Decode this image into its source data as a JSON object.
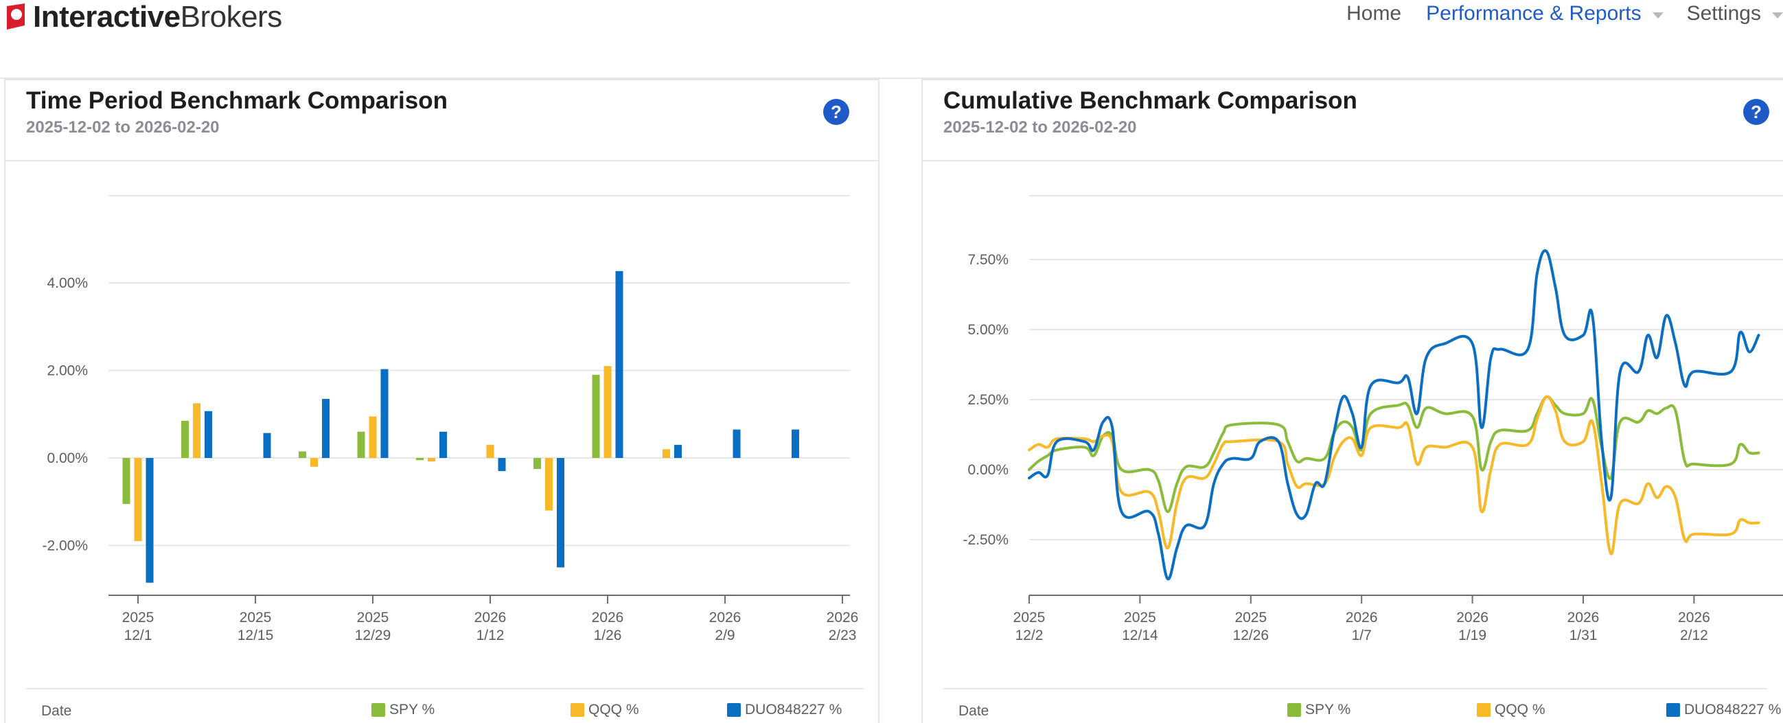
{
  "header": {
    "logo_bold": "Interactive",
    "logo_light": "Brokers",
    "nav": [
      {
        "label": "Home"
      },
      {
        "label": "Performance & Reports"
      },
      {
        "label": "Settings"
      }
    ]
  },
  "colors": {
    "spy": "#8bbb3b",
    "qqq": "#f7b928",
    "duo": "#0a6fc2",
    "accent": "#1f5bc6"
  },
  "icons": {
    "help": "help-icon",
    "dropdown": "chevron-down-icon"
  },
  "left_panel": {
    "title": "Time Period Benchmark Comparison",
    "subtitle": "2025-12-02 to 2026-02-20",
    "help_glyph": "?",
    "legend": {
      "date_label": "Date",
      "spy": "SPY %",
      "qqq": "QQQ %",
      "duo": "DUO848227 %"
    }
  },
  "right_panel": {
    "title": "Cumulative Benchmark Comparison",
    "subtitle": "2025-12-02 to 2026-02-20",
    "help_glyph": "?",
    "legend": {
      "date_label": "Date",
      "spy": "SPY %",
      "qqq": "QQQ %",
      "duo": "DUO848227 %"
    }
  },
  "chart_data": [
    {
      "type": "bar",
      "x_ticks": [
        {
          "year": "2025",
          "date": "12/1"
        },
        {
          "year": "2025",
          "date": "12/15"
        },
        {
          "year": "2025",
          "date": "12/29"
        },
        {
          "year": "2026",
          "date": "1/12"
        },
        {
          "year": "2026",
          "date": "1/26"
        },
        {
          "year": "2026",
          "date": "2/9"
        },
        {
          "year": "2026",
          "date": "2/23"
        }
      ],
      "y_ticks": [
        "4.00%",
        "2.00%",
        "0.00%",
        "-2.00%"
      ],
      "y_tick_values": [
        4,
        2,
        0,
        -2
      ],
      "ylim": [
        -3.2,
        6.0
      ],
      "grid": true,
      "series": [
        {
          "name": "SPY %",
          "values": [
            -1.05,
            0.85,
            0.0,
            0.15,
            0.6,
            -0.05,
            0.0,
            -0.25,
            1.9,
            0.0,
            0.0,
            0.0
          ]
        },
        {
          "name": "QQQ %",
          "values": [
            -1.9,
            1.25,
            0.0,
            -0.2,
            0.95,
            -0.08,
            0.3,
            -1.2,
            2.1,
            0.2,
            0.0,
            0.0
          ]
        },
        {
          "name": "DUO848227 %",
          "values": [
            -2.85,
            1.07,
            0.57,
            1.35,
            2.03,
            0.6,
            -0.3,
            -2.5,
            4.27,
            0.3,
            0.65,
            0.65
          ]
        }
      ],
      "categories": [
        "12/1",
        "12/8",
        "12/15",
        "12/22",
        "12/29",
        "1/5",
        "1/12",
        "1/19",
        "1/26",
        "2/2",
        "2/9",
        "2/16"
      ]
    },
    {
      "type": "line",
      "x_ticks": [
        {
          "year": "2025",
          "date": "12/2"
        },
        {
          "year": "2025",
          "date": "12/14"
        },
        {
          "year": "2025",
          "date": "12/26"
        },
        {
          "year": "2026",
          "date": "1/7"
        },
        {
          "year": "2026",
          "date": "1/19"
        },
        {
          "year": "2026",
          "date": "1/31"
        },
        {
          "year": "2026",
          "date": "2/12"
        }
      ],
      "y_ticks": [
        "7.50%",
        "5.00%",
        "2.50%",
        "0.00%",
        "-2.50%"
      ],
      "y_tick_values": [
        7.5,
        5,
        2.5,
        0,
        -2.5
      ],
      "ylim": [
        -4.5,
        9.5
      ],
      "grid": true,
      "x_day_range": [
        0,
        81
      ],
      "series": [
        {
          "name": "SPY %",
          "points": [
            [
              0,
              0.0
            ],
            [
              1,
              0.3
            ],
            [
              2,
              0.5
            ],
            [
              3,
              0.7
            ],
            [
              6,
              0.8
            ],
            [
              7,
              0.5
            ],
            [
              8,
              1.2
            ],
            [
              9,
              1.2
            ],
            [
              10,
              0.0
            ],
            [
              13,
              0.0
            ],
            [
              14,
              -0.4
            ],
            [
              15,
              -1.5
            ],
            [
              16,
              -0.5
            ],
            [
              17,
              0.1
            ],
            [
              19,
              0.1
            ],
            [
              20,
              0.6
            ],
            [
              21,
              1.3
            ],
            [
              22,
              1.6
            ],
            [
              27,
              1.6
            ],
            [
              28,
              1.0
            ],
            [
              29,
              0.3
            ],
            [
              30,
              0.4
            ],
            [
              32,
              0.4
            ],
            [
              33,
              1.3
            ],
            [
              34,
              1.7
            ],
            [
              35,
              1.5
            ],
            [
              36,
              0.7
            ],
            [
              37,
              2.0
            ],
            [
              40,
              2.3
            ],
            [
              41,
              2.3
            ],
            [
              42,
              1.5
            ],
            [
              43,
              2.2
            ],
            [
              45,
              2.0
            ],
            [
              48,
              1.9
            ],
            [
              49,
              0.0
            ],
            [
              50,
              1.0
            ],
            [
              51,
              1.4
            ],
            [
              54,
              1.4
            ],
            [
              55,
              2.0
            ],
            [
              56,
              2.6
            ],
            [
              57,
              2.3
            ],
            [
              58,
              2.0
            ],
            [
              60,
              2.0
            ],
            [
              61,
              2.5
            ],
            [
              62,
              0.8
            ],
            [
              63,
              -0.3
            ],
            [
              64,
              1.7
            ],
            [
              66,
              1.7
            ],
            [
              67,
              2.1
            ],
            [
              68,
              2.0
            ],
            [
              69,
              2.2
            ],
            [
              70,
              2.1
            ],
            [
              71,
              0.3
            ],
            [
              72,
              0.2
            ],
            [
              76,
              0.2
            ],
            [
              77,
              0.9
            ],
            [
              78,
              0.6
            ],
            [
              79,
              0.6
            ]
          ]
        },
        {
          "name": "QQQ %",
          "points": [
            [
              0,
              0.7
            ],
            [
              1,
              0.9
            ],
            [
              2,
              0.8
            ],
            [
              3,
              1.1
            ],
            [
              6,
              1.1
            ],
            [
              7,
              1.0
            ],
            [
              8,
              1.2
            ],
            [
              9,
              1.0
            ],
            [
              10,
              -0.8
            ],
            [
              13,
              -0.8
            ],
            [
              14,
              -1.5
            ],
            [
              15,
              -2.8
            ],
            [
              16,
              -1.2
            ],
            [
              17,
              -0.3
            ],
            [
              19,
              -0.3
            ],
            [
              20,
              0.2
            ],
            [
              21,
              0.9
            ],
            [
              22,
              1.0
            ],
            [
              27,
              1.0
            ],
            [
              28,
              0.2
            ],
            [
              29,
              -0.6
            ],
            [
              30,
              -0.5
            ],
            [
              32,
              -0.5
            ],
            [
              33,
              0.4
            ],
            [
              34,
              1.0
            ],
            [
              35,
              1.1
            ],
            [
              36,
              0.5
            ],
            [
              37,
              1.5
            ],
            [
              40,
              1.5
            ],
            [
              41,
              1.6
            ],
            [
              42,
              0.2
            ],
            [
              43,
              0.8
            ],
            [
              45,
              0.8
            ],
            [
              48,
              0.8
            ],
            [
              49,
              -1.5
            ],
            [
              50,
              0.0
            ],
            [
              51,
              0.9
            ],
            [
              54,
              0.9
            ],
            [
              55,
              1.8
            ],
            [
              56,
              2.6
            ],
            [
              57,
              2.1
            ],
            [
              58,
              1.0
            ],
            [
              60,
              1.0
            ],
            [
              61,
              1.7
            ],
            [
              62,
              -0.5
            ],
            [
              63,
              -3.0
            ],
            [
              64,
              -1.2
            ],
            [
              66,
              -1.2
            ],
            [
              67,
              -0.5
            ],
            [
              68,
              -1.0
            ],
            [
              69,
              -0.6
            ],
            [
              70,
              -1.0
            ],
            [
              71,
              -2.5
            ],
            [
              72,
              -2.3
            ],
            [
              76,
              -2.3
            ],
            [
              77,
              -1.8
            ],
            [
              78,
              -1.9
            ],
            [
              79,
              -1.9
            ]
          ]
        },
        {
          "name": "DUO848227 %",
          "points": [
            [
              0,
              -0.3
            ],
            [
              1,
              -0.1
            ],
            [
              2,
              -0.2
            ],
            [
              3,
              1.0
            ],
            [
              6,
              1.0
            ],
            [
              7,
              0.7
            ],
            [
              8,
              1.7
            ],
            [
              9,
              1.5
            ],
            [
              10,
              -1.5
            ],
            [
              13,
              -1.5
            ],
            [
              14,
              -2.3
            ],
            [
              15,
              -3.9
            ],
            [
              16,
              -2.8
            ],
            [
              17,
              -2.0
            ],
            [
              19,
              -2.0
            ],
            [
              20,
              -0.5
            ],
            [
              21,
              0.2
            ],
            [
              22,
              0.4
            ],
            [
              24,
              0.4
            ],
            [
              25,
              1.0
            ],
            [
              27,
              1.0
            ],
            [
              28,
              -0.5
            ],
            [
              29,
              -1.6
            ],
            [
              30,
              -1.6
            ],
            [
              31,
              -0.5
            ],
            [
              32,
              -0.5
            ],
            [
              33,
              1.3
            ],
            [
              34,
              2.6
            ],
            [
              35,
              2.0
            ],
            [
              36,
              0.8
            ],
            [
              37,
              3.0
            ],
            [
              40,
              3.1
            ],
            [
              41,
              3.3
            ],
            [
              42,
              2.0
            ],
            [
              43,
              4.0
            ],
            [
              45,
              4.5
            ],
            [
              48,
              4.5
            ],
            [
              49,
              1.5
            ],
            [
              50,
              4.0
            ],
            [
              51,
              4.3
            ],
            [
              54,
              4.3
            ],
            [
              55,
              7.0
            ],
            [
              56,
              7.8
            ],
            [
              57,
              6.5
            ],
            [
              58,
              4.8
            ],
            [
              60,
              4.8
            ],
            [
              61,
              5.5
            ],
            [
              62,
              1.0
            ],
            [
              63,
              -1.0
            ],
            [
              64,
              3.5
            ],
            [
              66,
              3.5
            ],
            [
              67,
              4.8
            ],
            [
              68,
              4.0
            ],
            [
              69,
              5.5
            ],
            [
              70,
              4.5
            ],
            [
              71,
              3.0
            ],
            [
              72,
              3.5
            ],
            [
              76,
              3.5
            ],
            [
              77,
              4.9
            ],
            [
              78,
              4.2
            ],
            [
              79,
              4.8
            ]
          ]
        }
      ]
    }
  ]
}
